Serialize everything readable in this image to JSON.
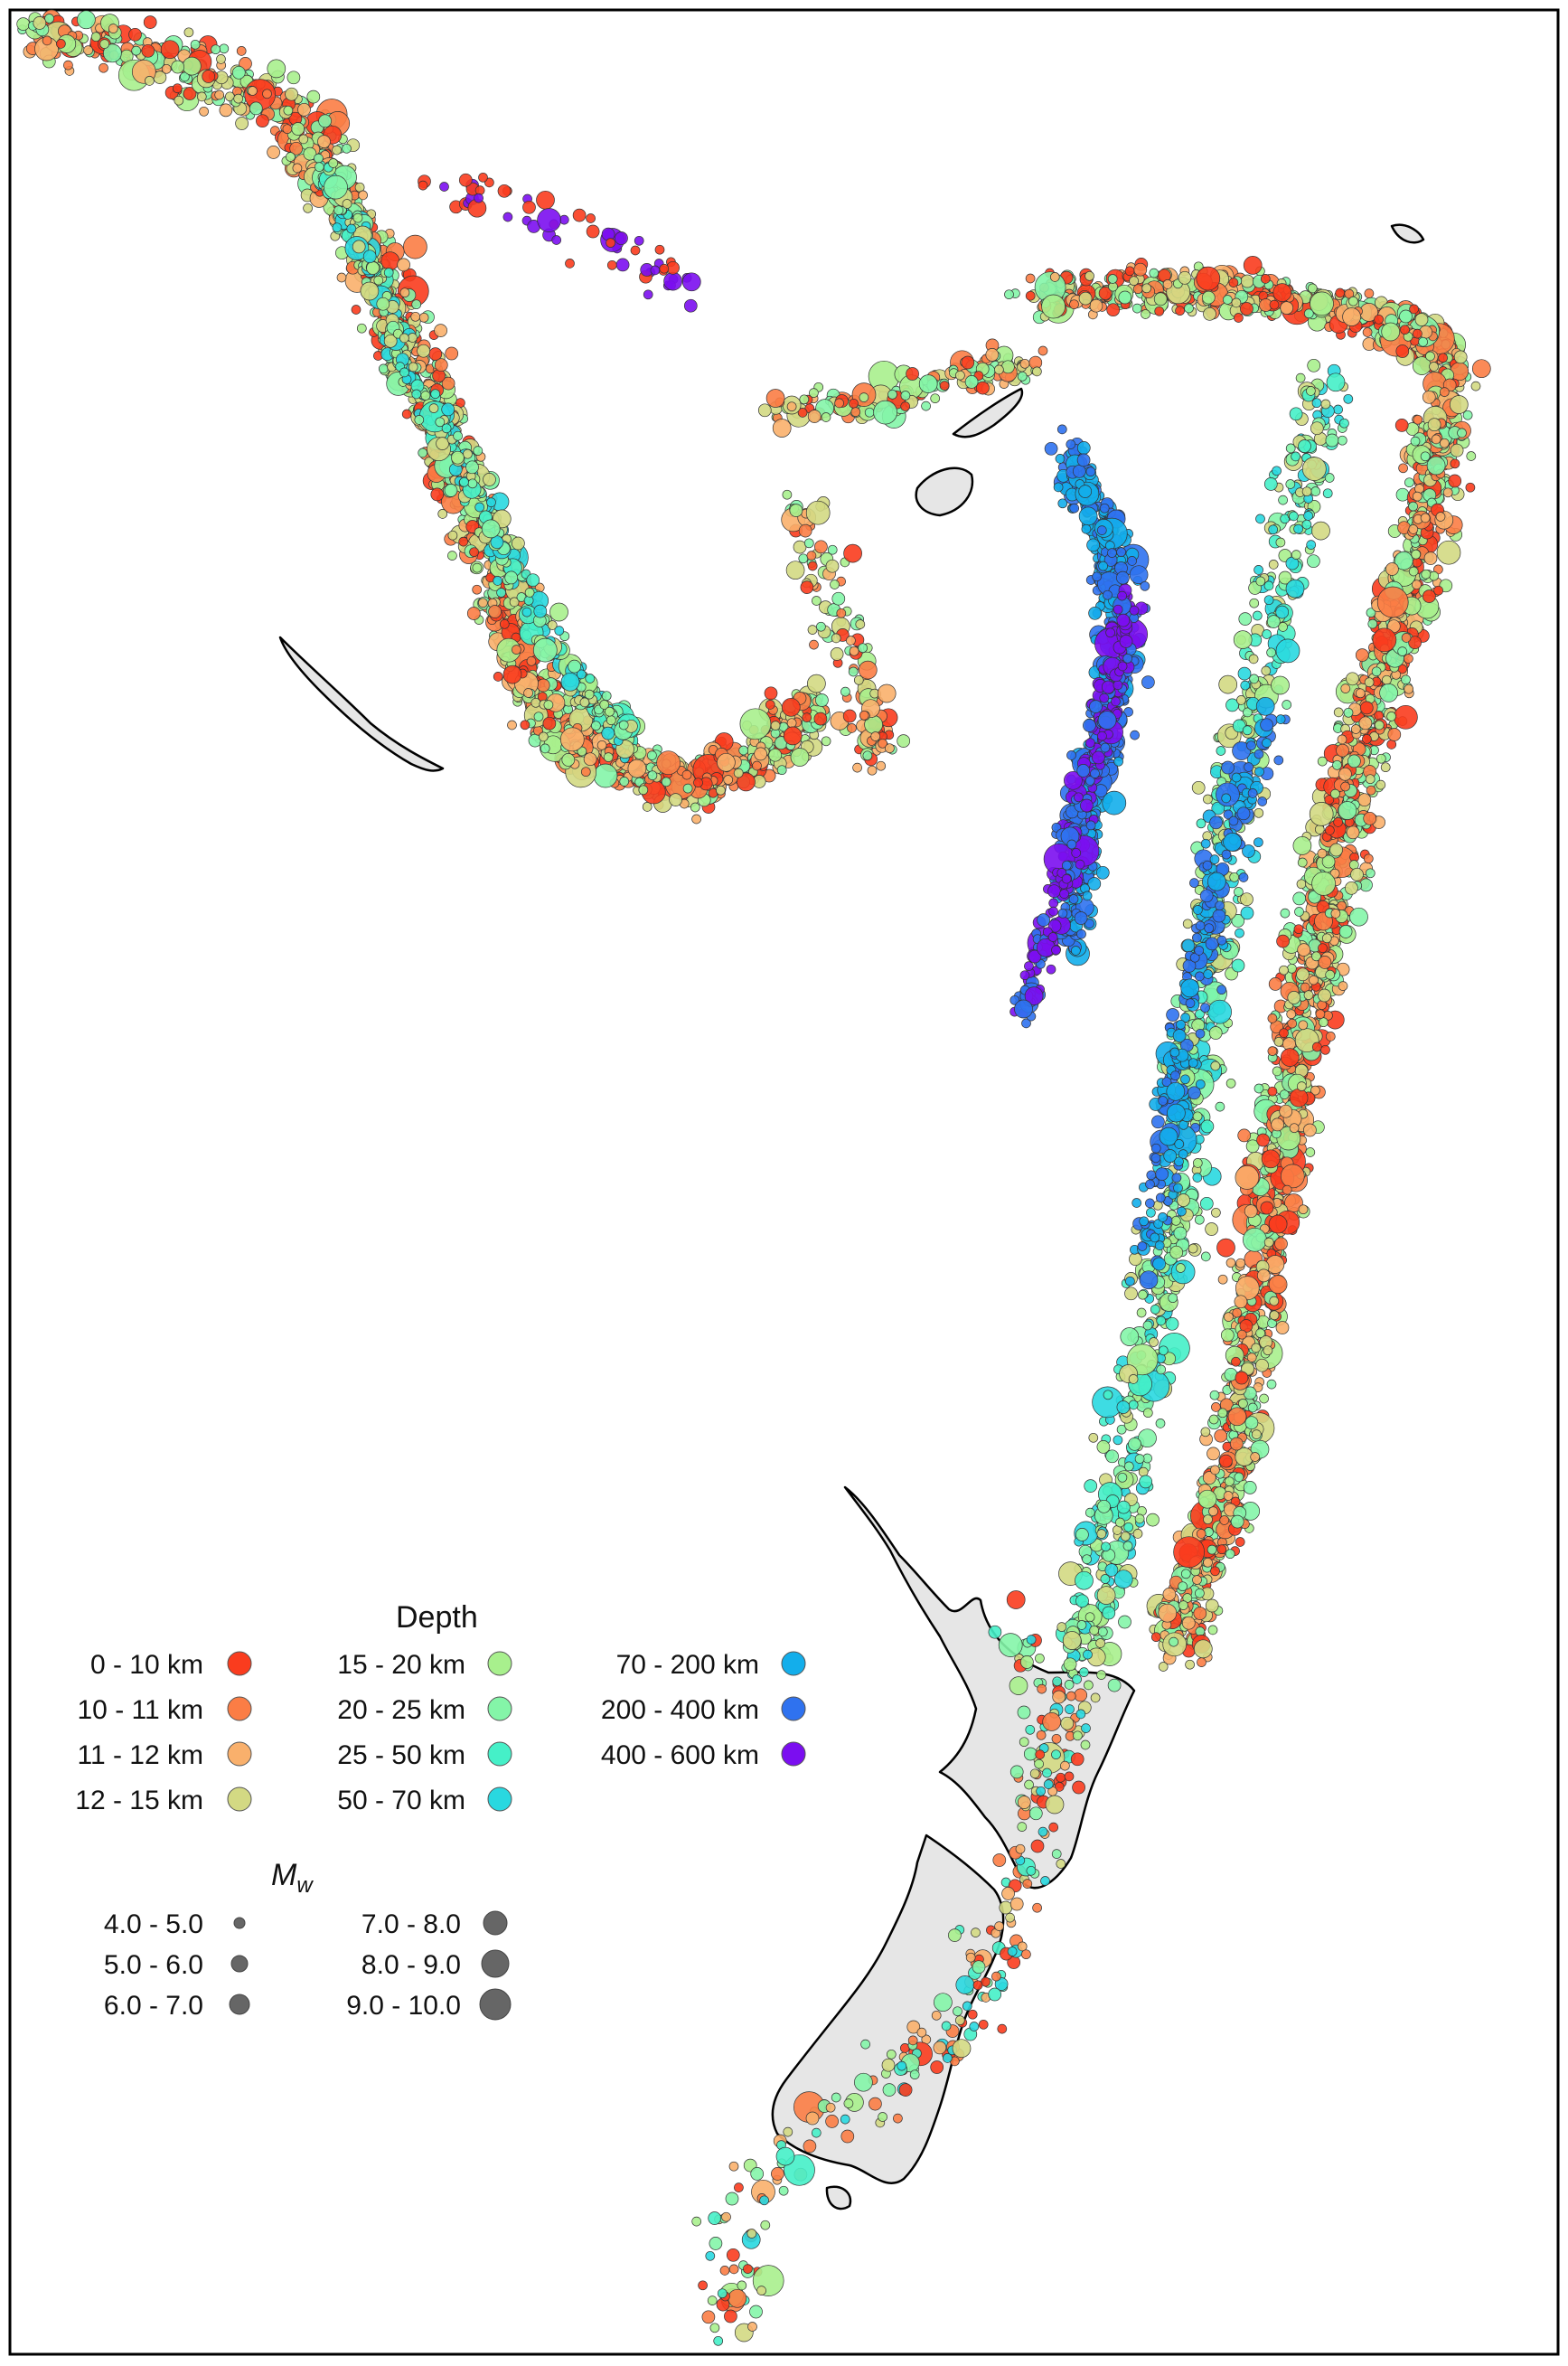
{
  "legend": {
    "depth_title": "Depth",
    "depth_classes": [
      {
        "label": "0 - 10 km",
        "color": "#fa3c1e"
      },
      {
        "label": "10 - 11 km",
        "color": "#fb7d45"
      },
      {
        "label": "11 - 12 km",
        "color": "#f9b06c"
      },
      {
        "label": "12 - 15 km",
        "color": "#d3d983"
      },
      {
        "label": "15 - 20 km",
        "color": "#a8f08d"
      },
      {
        "label": "20 - 25 km",
        "color": "#84f5a8"
      },
      {
        "label": "25 - 50 km",
        "color": "#45f0c8"
      },
      {
        "label": "50 - 70 km",
        "color": "#29d8e0"
      },
      {
        "label": "70 - 200 km",
        "color": "#13aeeb"
      },
      {
        "label": "200 - 400 km",
        "color": "#2f72ef"
      },
      {
        "label": "400 - 600 km",
        "color": "#7b0ef0"
      }
    ],
    "mag_title_main": "M",
    "mag_title_sub": "w",
    "mag_classes": [
      {
        "label": "4.0 -  5.0"
      },
      {
        "label": "5.0 -  6.0"
      },
      {
        "label": "6.0 -  7.0"
      },
      {
        "label": "7.0 -  8.0"
      },
      {
        "label": "8.0 -  9.0"
      },
      {
        "label": "9.0 - 10.0"
      }
    ],
    "mag_marker_color": "#666666"
  },
  "map": {
    "land_color": "#e6e6e6",
    "coast_color": "#000000",
    "regions_shown": [
      "New Caledonia",
      "Fiji",
      "New Zealand North Island",
      "New Zealand South Island"
    ]
  }
}
